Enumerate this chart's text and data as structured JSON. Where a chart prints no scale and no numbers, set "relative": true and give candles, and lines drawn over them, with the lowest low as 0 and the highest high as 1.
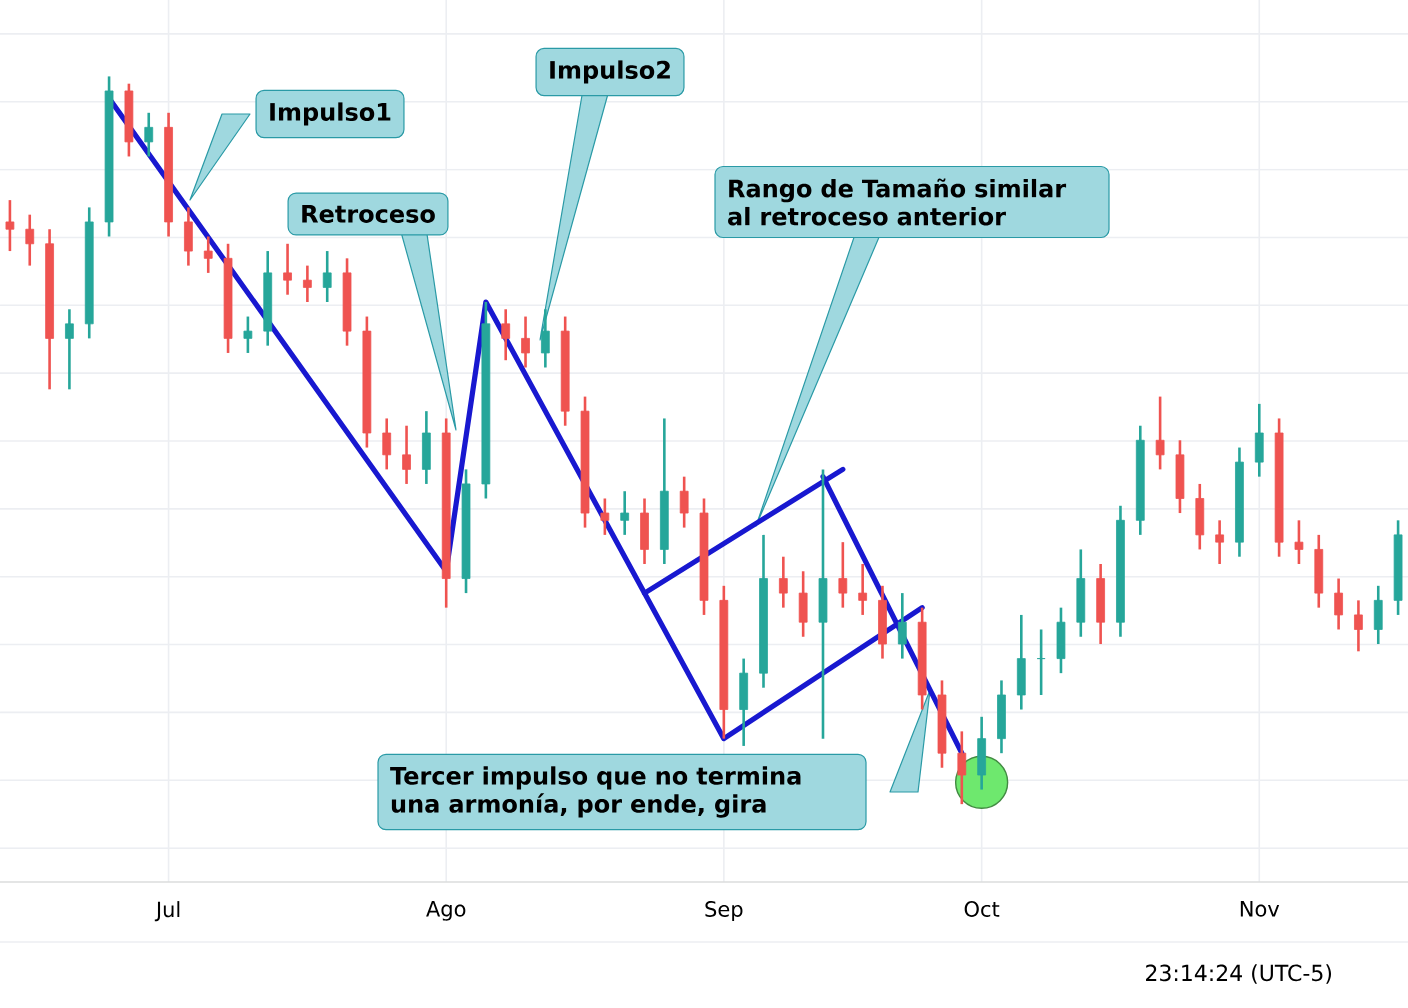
{
  "chart_data": {
    "type": "candlestick",
    "relative": true,
    "grid": true,
    "categories": [
      null,
      null,
      null,
      null,
      null,
      null,
      null,
      null,
      "Jul",
      null,
      null,
      null,
      null,
      null,
      null,
      null,
      null,
      null,
      null,
      null,
      null,
      null,
      "Ago",
      null,
      null,
      null,
      null,
      null,
      null,
      null,
      null,
      null,
      null,
      null,
      null,
      null,
      "Sep",
      null,
      null,
      null,
      null,
      null,
      null,
      null,
      null,
      null,
      null,
      null,
      null,
      "Oct",
      null,
      null,
      null,
      null,
      null,
      null,
      null,
      null,
      null,
      null,
      null,
      null,
      null,
      "Nov",
      null,
      null,
      null,
      null,
      null,
      null,
      null
    ],
    "ohlc": [
      [
        0.8,
        0.83,
        0.76,
        0.79
      ],
      [
        0.79,
        0.81,
        0.74,
        0.77
      ],
      [
        0.77,
        0.79,
        0.57,
        0.64
      ],
      [
        0.64,
        0.68,
        0.57,
        0.66
      ],
      [
        0.66,
        0.82,
        0.64,
        0.8
      ],
      [
        0.8,
        1.0,
        0.78,
        0.98
      ],
      [
        0.98,
        0.99,
        0.89,
        0.91
      ],
      [
        0.91,
        0.95,
        0.89,
        0.93
      ],
      [
        0.93,
        0.95,
        0.78,
        0.8
      ],
      [
        0.8,
        0.82,
        0.74,
        0.76
      ],
      [
        0.76,
        0.78,
        0.73,
        0.75
      ],
      [
        0.75,
        0.77,
        0.62,
        0.64
      ],
      [
        0.64,
        0.67,
        0.62,
        0.65
      ],
      [
        0.65,
        0.76,
        0.63,
        0.73
      ],
      [
        0.73,
        0.77,
        0.7,
        0.72
      ],
      [
        0.72,
        0.74,
        0.69,
        0.71
      ],
      [
        0.71,
        0.76,
        0.69,
        0.73
      ],
      [
        0.73,
        0.75,
        0.63,
        0.65
      ],
      [
        0.65,
        0.67,
        0.49,
        0.51
      ],
      [
        0.51,
        0.53,
        0.46,
        0.48
      ],
      [
        0.48,
        0.52,
        0.44,
        0.46
      ],
      [
        0.46,
        0.54,
        0.44,
        0.51
      ],
      [
        0.51,
        0.53,
        0.27,
        0.31
      ],
      [
        0.31,
        0.46,
        0.29,
        0.44
      ],
      [
        0.44,
        0.69,
        0.42,
        0.66
      ],
      [
        0.66,
        0.68,
        0.61,
        0.64
      ],
      [
        0.64,
        0.67,
        0.6,
        0.62
      ],
      [
        0.62,
        0.68,
        0.6,
        0.65
      ],
      [
        0.65,
        0.67,
        0.52,
        0.54
      ],
      [
        0.54,
        0.56,
        0.38,
        0.4
      ],
      [
        0.4,
        0.42,
        0.37,
        0.39
      ],
      [
        0.39,
        0.43,
        0.37,
        0.4
      ],
      [
        0.4,
        0.42,
        0.33,
        0.35
      ],
      [
        0.35,
        0.53,
        0.33,
        0.43
      ],
      [
        0.43,
        0.45,
        0.38,
        0.4
      ],
      [
        0.4,
        0.42,
        0.26,
        0.28
      ],
      [
        0.28,
        0.3,
        0.09,
        0.13
      ],
      [
        0.13,
        0.2,
        0.08,
        0.18
      ],
      [
        0.18,
        0.37,
        0.16,
        0.31
      ],
      [
        0.31,
        0.34,
        0.27,
        0.29
      ],
      [
        0.29,
        0.32,
        0.23,
        0.25
      ],
      [
        0.25,
        0.46,
        0.09,
        0.31
      ],
      [
        0.31,
        0.36,
        0.27,
        0.29
      ],
      [
        0.29,
        0.33,
        0.26,
        0.28
      ],
      [
        0.28,
        0.3,
        0.2,
        0.22
      ],
      [
        0.22,
        0.29,
        0.2,
        0.25
      ],
      [
        0.25,
        0.27,
        0.13,
        0.15
      ],
      [
        0.15,
        0.17,
        0.05,
        0.07
      ],
      [
        0.07,
        0.1,
        0.0,
        0.04
      ],
      [
        0.04,
        0.12,
        0.02,
        0.09
      ],
      [
        0.09,
        0.17,
        0.07,
        0.15
      ],
      [
        0.15,
        0.26,
        0.13,
        0.2
      ],
      [
        0.2,
        0.24,
        0.15,
        0.2
      ],
      [
        0.2,
        0.27,
        0.18,
        0.25
      ],
      [
        0.25,
        0.35,
        0.23,
        0.31
      ],
      [
        0.31,
        0.33,
        0.22,
        0.25
      ],
      [
        0.25,
        0.41,
        0.23,
        0.39
      ],
      [
        0.39,
        0.52,
        0.37,
        0.5
      ],
      [
        0.5,
        0.56,
        0.46,
        0.48
      ],
      [
        0.48,
        0.5,
        0.4,
        0.42
      ],
      [
        0.42,
        0.44,
        0.35,
        0.37
      ],
      [
        0.37,
        0.39,
        0.33,
        0.36
      ],
      [
        0.36,
        0.49,
        0.34,
        0.47
      ],
      [
        0.47,
        0.55,
        0.45,
        0.51
      ],
      [
        0.51,
        0.53,
        0.34,
        0.36
      ],
      [
        0.36,
        0.39,
        0.33,
        0.35
      ],
      [
        0.35,
        0.37,
        0.27,
        0.29
      ],
      [
        0.29,
        0.31,
        0.24,
        0.26
      ],
      [
        0.26,
        0.28,
        0.21,
        0.24
      ],
      [
        0.24,
        0.3,
        0.22,
        0.28
      ],
      [
        0.28,
        0.39,
        0.26,
        0.37
      ]
    ],
    "series": [
      {
        "type": "line",
        "color": "#1818d0",
        "values": [
          null,
          null,
          null,
          null,
          null,
          0.97,
          null,
          null,
          null,
          null,
          null,
          null,
          null,
          null,
          null,
          null,
          null,
          null,
          null,
          null,
          null,
          null,
          0.32,
          null,
          0.69,
          null,
          null,
          null,
          null,
          null,
          null,
          null,
          null,
          null,
          null,
          null,
          0.09,
          null,
          null,
          null,
          null,
          null,
          null,
          null,
          null,
          null,
          0.27,
          null,
          null,
          null,
          null,
          null,
          null,
          null,
          null,
          null,
          null,
          null,
          null,
          null,
          null,
          null,
          null,
          null,
          null,
          null,
          null,
          null,
          null,
          null,
          null
        ]
      },
      {
        "type": "line",
        "color": "#1818d0",
        "values": [
          null,
          null,
          null,
          null,
          null,
          null,
          null,
          null,
          null,
          null,
          null,
          null,
          null,
          null,
          null,
          null,
          null,
          null,
          null,
          null,
          null,
          null,
          null,
          null,
          null,
          null,
          null,
          null,
          null,
          null,
          null,
          null,
          0.29,
          null,
          null,
          null,
          null,
          null,
          null,
          null,
          null,
          null,
          0.46,
          null,
          null,
          null,
          null,
          null,
          null,
          null,
          null,
          null,
          null,
          null,
          null,
          null,
          null,
          null,
          null,
          null,
          null,
          null,
          null,
          null,
          null,
          null,
          null,
          null,
          null,
          null,
          null
        ]
      },
      {
        "type": "line",
        "color": "#1818d0",
        "values": [
          null,
          null,
          null,
          null,
          null,
          null,
          null,
          null,
          null,
          null,
          null,
          null,
          null,
          null,
          null,
          null,
          null,
          null,
          null,
          null,
          null,
          null,
          null,
          null,
          null,
          null,
          null,
          null,
          null,
          null,
          null,
          null,
          null,
          null,
          null,
          null,
          null,
          null,
          null,
          null,
          null,
          0.45,
          null,
          null,
          null,
          null,
          null,
          null,
          0.07,
          null,
          null,
          null,
          null,
          null,
          null,
          null,
          null,
          null,
          null,
          null,
          null,
          null,
          null,
          null,
          null,
          null,
          null,
          null,
          null,
          null,
          null
        ]
      },
      {
        "type": "scatter",
        "color": "#6ee86e",
        "marker": "circle",
        "values": [
          null,
          null,
          null,
          null,
          null,
          null,
          null,
          null,
          null,
          null,
          null,
          null,
          null,
          null,
          null,
          null,
          null,
          null,
          null,
          null,
          null,
          null,
          null,
          null,
          null,
          null,
          null,
          null,
          null,
          null,
          null,
          null,
          null,
          null,
          null,
          null,
          null,
          null,
          null,
          null,
          null,
          null,
          null,
          null,
          null,
          null,
          null,
          null,
          null,
          0.03,
          null,
          null,
          null,
          null,
          null,
          null,
          null,
          null,
          null,
          null,
          null,
          null,
          null,
          null,
          null,
          null,
          null,
          null,
          null,
          null,
          null
        ]
      }
    ],
    "annotations": [
      "Impulso1",
      "Retroceso",
      "Impulso2",
      "Rango de Tamaño similar al retroceso anterior",
      "Tercer impulso que no termina una armonía, por ende, gira",
      "23:14:24 (UTC-5)"
    ]
  }
}
